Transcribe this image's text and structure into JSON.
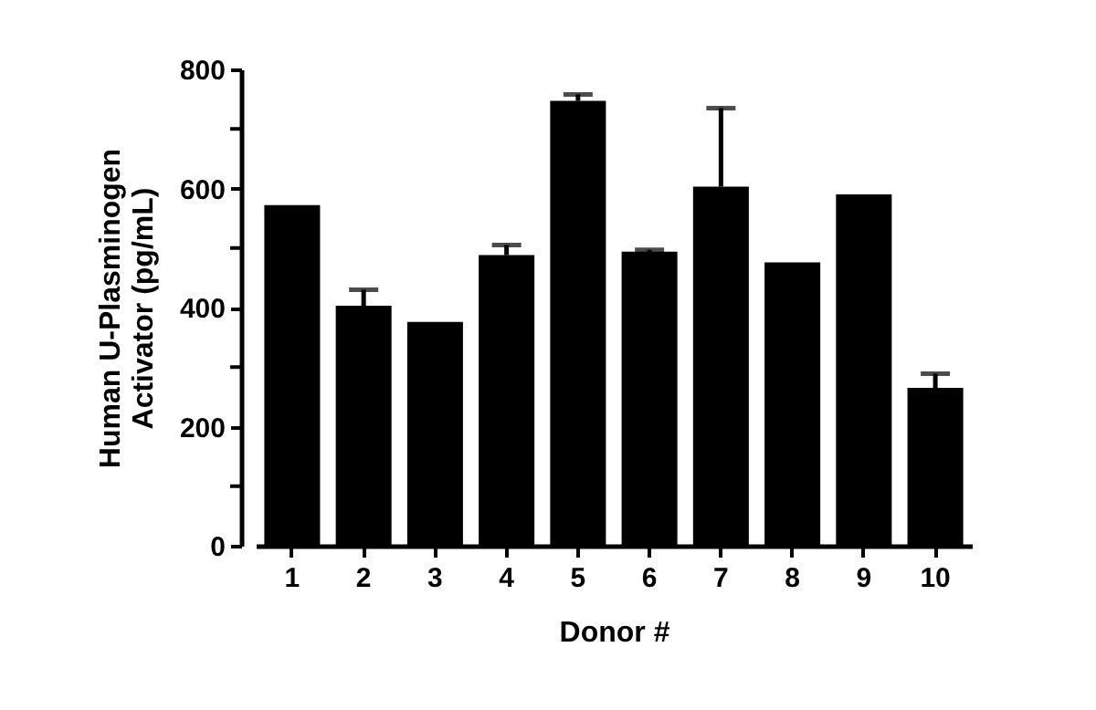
{
  "chart_data": {
    "type": "bar",
    "xlabel": "Donor #",
    "ylabel": "Human U-Plasminogen\nActivator (pg/mL)",
    "categories": [
      "1",
      "2",
      "3",
      "4",
      "5",
      "6",
      "7",
      "8",
      "9",
      "10"
    ],
    "values": [
      572,
      403,
      376,
      488,
      747,
      494,
      603,
      476,
      590,
      265
    ],
    "errors": [
      null,
      [
        403,
        430
      ],
      null,
      [
        488,
        505
      ],
      [
        747,
        758
      ],
      [
        494,
        497
      ],
      [
        603,
        735
      ],
      null,
      null,
      [
        265,
        289
      ]
    ],
    "color": "#000000",
    "ylim": [
      0,
      800
    ],
    "yticks": [
      0,
      {
        "value": 100,
        "label": null
      },
      200,
      {
        "value": 300,
        "label": null
      },
      400,
      {
        "value": 500,
        "label": null
      },
      600,
      {
        "value": 700,
        "label": null
      },
      800
    ],
    "grid": false
  }
}
